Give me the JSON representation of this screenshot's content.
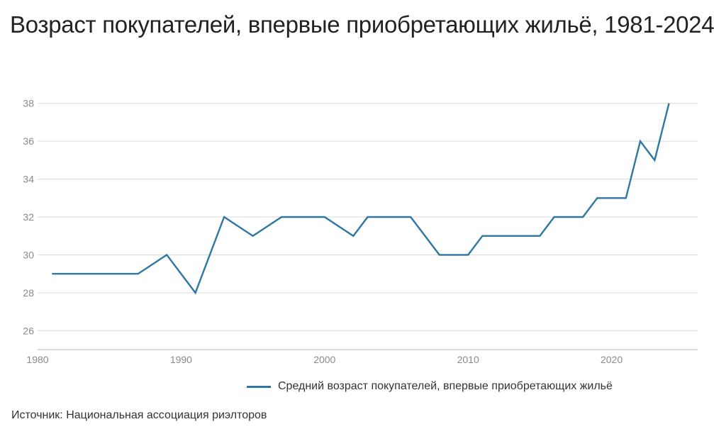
{
  "title": "Возраст покупателей, впервые приобретающих жильё, 1981-2024",
  "source": "Источник: Национальная ассоциация риэлторов",
  "colors": {
    "line": "#2e77a3",
    "grid": "#d9d9d9",
    "axis": "#c8c8c8",
    "tick_text": "#8a8a8a"
  },
  "chart_data": {
    "type": "line",
    "title": "Возраст покупателей, впервые приобретающих жильё, 1981-2024",
    "xlabel": "",
    "ylabel": "",
    "xlim": [
      1980,
      2026
    ],
    "ylim": [
      25,
      39
    ],
    "x_ticks": [
      1980,
      1990,
      2000,
      2010,
      2020
    ],
    "y_ticks": [
      26,
      28,
      30,
      32,
      34,
      36,
      38
    ],
    "grid": true,
    "legend_position": "bottom",
    "series": [
      {
        "name": "Средний возраст покупателей, впервые приобретающих жильё",
        "color": "#2e77a3",
        "x": [
          1981,
          1987,
          1989,
          1991,
          1993,
          1995,
          1997,
          2000,
          2002,
          2003,
          2006,
          2008,
          2010,
          2011,
          2015,
          2016,
          2018,
          2019,
          2021,
          2022,
          2023,
          2024
        ],
        "y": [
          29,
          29,
          30,
          28,
          32,
          31,
          32,
          32,
          31,
          32,
          32,
          30,
          30,
          31,
          31,
          32,
          32,
          33,
          33,
          36,
          35,
          38
        ]
      }
    ]
  }
}
